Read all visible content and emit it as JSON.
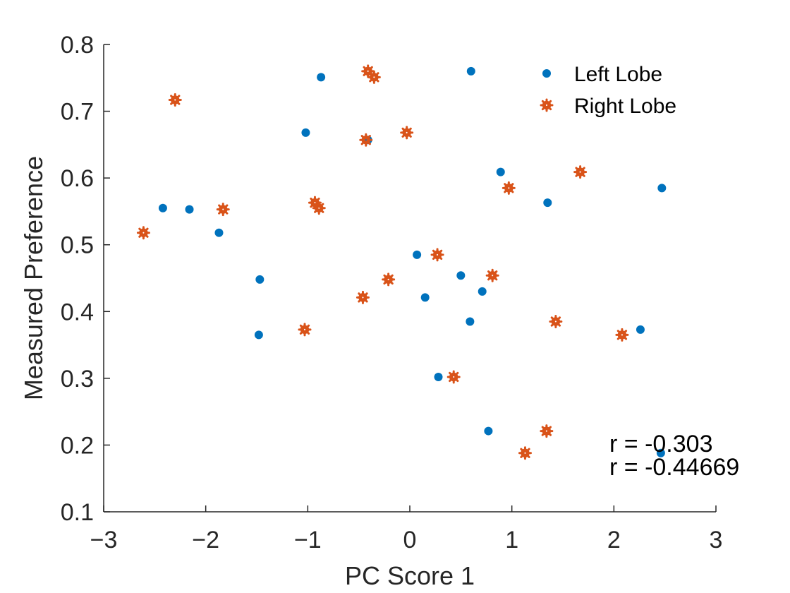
{
  "chart_data": {
    "type": "scatter",
    "title": "",
    "xlabel": "PC Score 1",
    "ylabel": "Measured Preference",
    "xlim": [
      -3,
      3
    ],
    "ylim": [
      0.1,
      0.8
    ],
    "xticks": [
      -3,
      -2,
      -1,
      0,
      1,
      2,
      3
    ],
    "yticks": [
      0.1,
      0.2,
      0.3,
      0.4,
      0.5,
      0.6,
      0.7,
      0.8
    ],
    "grid": false,
    "legend_position": "top-right",
    "series": [
      {
        "name": "Left Lobe",
        "color": "#0072BD",
        "marker": "filled-circle",
        "points": [
          [
            -2.42,
            0.555
          ],
          [
            -2.16,
            0.553
          ],
          [
            -1.87,
            0.518
          ],
          [
            -1.47,
            0.448
          ],
          [
            -1.48,
            0.365
          ],
          [
            -1.02,
            0.668
          ],
          [
            -0.87,
            0.751
          ],
          [
            -0.41,
            0.657
          ],
          [
            0.6,
            0.76
          ],
          [
            0.07,
            0.485
          ],
          [
            0.15,
            0.421
          ],
          [
            0.5,
            0.454
          ],
          [
            0.71,
            0.43
          ],
          [
            0.59,
            0.385
          ],
          [
            0.28,
            0.302
          ],
          [
            0.77,
            0.221
          ],
          [
            0.89,
            0.609
          ],
          [
            1.35,
            0.563
          ],
          [
            2.26,
            0.373
          ],
          [
            2.47,
            0.585
          ],
          [
            2.46,
            0.188
          ]
        ]
      },
      {
        "name": "Right Lobe",
        "color": "#D95319",
        "marker": "asterisk-ring",
        "points": [
          [
            -2.61,
            0.518
          ],
          [
            -2.3,
            0.717
          ],
          [
            -1.83,
            0.553
          ],
          [
            -1.03,
            0.373
          ],
          [
            -0.93,
            0.563
          ],
          [
            -0.89,
            0.555
          ],
          [
            -0.46,
            0.421
          ],
          [
            -0.43,
            0.657
          ],
          [
            -0.41,
            0.76
          ],
          [
            -0.35,
            0.751
          ],
          [
            -0.21,
            0.448
          ],
          [
            -0.03,
            0.668
          ],
          [
            0.27,
            0.485
          ],
          [
            0.43,
            0.302
          ],
          [
            0.81,
            0.454
          ],
          [
            0.97,
            0.585
          ],
          [
            1.13,
            0.188
          ],
          [
            1.34,
            0.221
          ],
          [
            1.43,
            0.385
          ],
          [
            1.67,
            0.609
          ],
          [
            2.08,
            0.365
          ]
        ]
      }
    ],
    "annotations": [
      "r = -0.303",
      "r = -0.44669"
    ]
  }
}
